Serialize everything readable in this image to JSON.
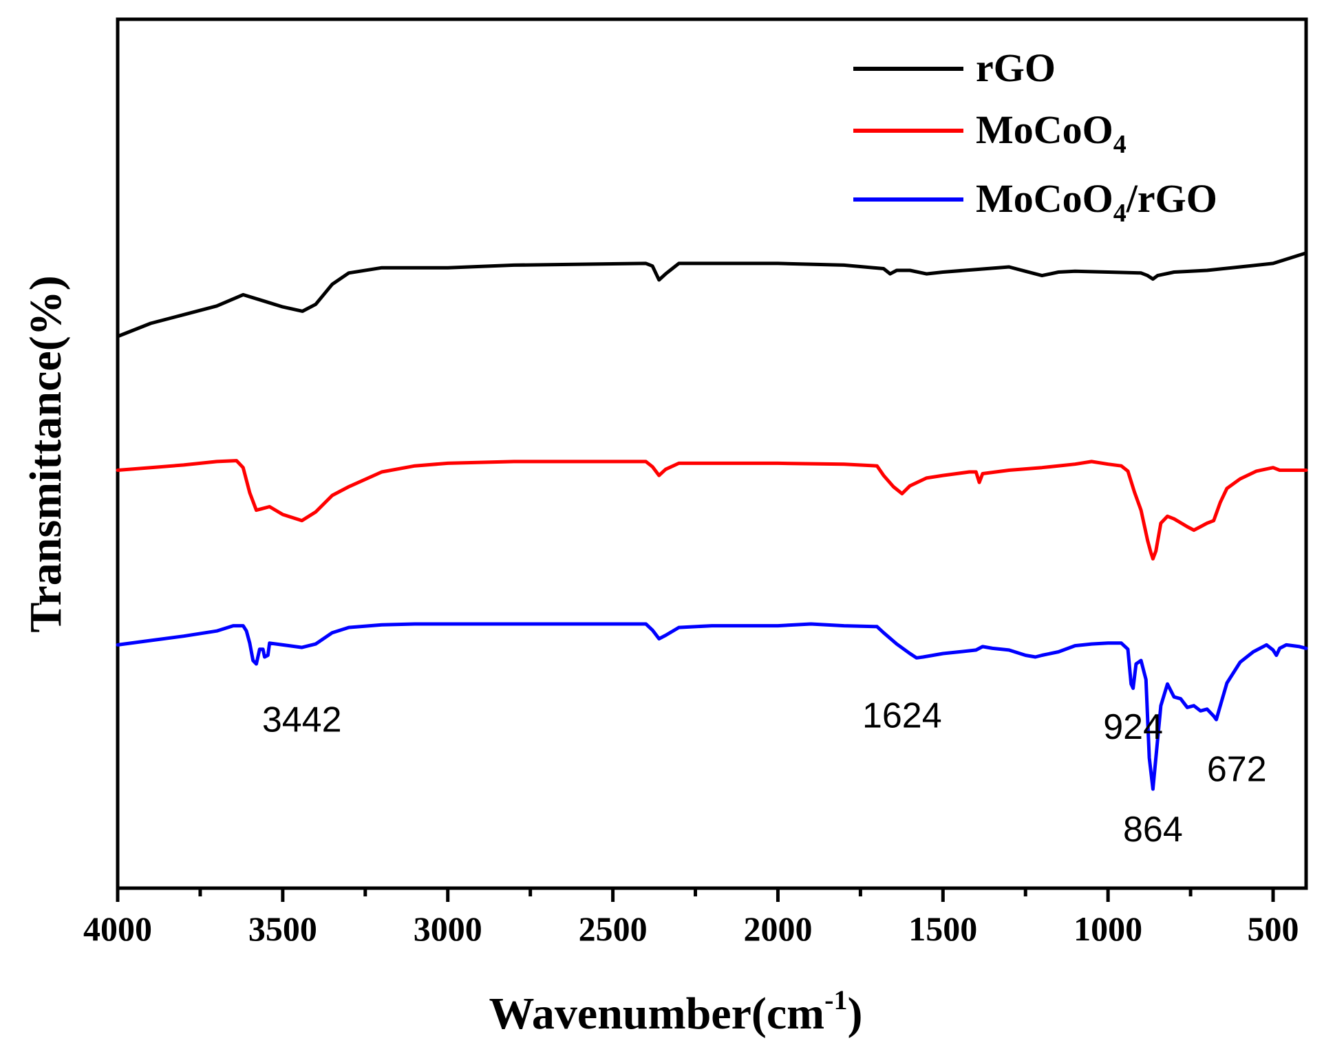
{
  "chart_data": {
    "type": "line",
    "title": "",
    "xlabel": "Wavenumber(cm",
    "xlabel_sup": "-1",
    "xlabel_end": ")",
    "ylabel": "Transmittance(%)",
    "xlim": [
      4000,
      400
    ],
    "x_reversed": true,
    "ylim": [
      0,
      100
    ],
    "y_ticks_labeled": false,
    "x_ticks": [
      4000,
      3500,
      3000,
      2500,
      2000,
      1500,
      1000,
      500
    ],
    "x_minor_ticks": [
      3750,
      3250,
      2750,
      2250,
      1750,
      1250,
      750
    ],
    "legend_position": "top-right",
    "series": [
      {
        "name": "rGO",
        "label_main": "rGO",
        "label_sub": "",
        "label_tail": "",
        "color": "#000000",
        "points": [
          [
            4000,
            63.5
          ],
          [
            3900,
            65
          ],
          [
            3800,
            66
          ],
          [
            3700,
            67
          ],
          [
            3620,
            68.3
          ],
          [
            3560,
            67.6
          ],
          [
            3500,
            66.9
          ],
          [
            3440,
            66.4
          ],
          [
            3400,
            67.2
          ],
          [
            3350,
            69.5
          ],
          [
            3300,
            70.8
          ],
          [
            3200,
            71.4
          ],
          [
            3000,
            71.4
          ],
          [
            2800,
            71.7
          ],
          [
            2400,
            71.9
          ],
          [
            2380,
            71.6
          ],
          [
            2360,
            70
          ],
          [
            2340,
            70.7
          ],
          [
            2320,
            71.3
          ],
          [
            2300,
            71.9
          ],
          [
            2000,
            71.9
          ],
          [
            1800,
            71.7
          ],
          [
            1680,
            71.3
          ],
          [
            1660,
            70.7
          ],
          [
            1640,
            71.1
          ],
          [
            1600,
            71.1
          ],
          [
            1550,
            70.7
          ],
          [
            1500,
            70.9
          ],
          [
            1400,
            71.2
          ],
          [
            1300,
            71.5
          ],
          [
            1250,
            71
          ],
          [
            1200,
            70.5
          ],
          [
            1150,
            70.9
          ],
          [
            1100,
            71
          ],
          [
            1000,
            70.9
          ],
          [
            900,
            70.8
          ],
          [
            880,
            70.5
          ],
          [
            864,
            70.1
          ],
          [
            850,
            70.5
          ],
          [
            800,
            70.9
          ],
          [
            700,
            71.1
          ],
          [
            600,
            71.5
          ],
          [
            500,
            71.9
          ],
          [
            400,
            73.1
          ]
        ]
      },
      {
        "name": "MoCoO4",
        "label_main": "MoCoO",
        "label_sub": "4",
        "label_tail": "",
        "color": "#ff0000",
        "points": [
          [
            4000,
            48.1
          ],
          [
            3900,
            48.4
          ],
          [
            3800,
            48.7
          ],
          [
            3700,
            49.1
          ],
          [
            3640,
            49.2
          ],
          [
            3620,
            48.4
          ],
          [
            3600,
            45.5
          ],
          [
            3580,
            43.5
          ],
          [
            3560,
            43.7
          ],
          [
            3540,
            43.9
          ],
          [
            3500,
            43
          ],
          [
            3442,
            42.3
          ],
          [
            3400,
            43.3
          ],
          [
            3350,
            45.2
          ],
          [
            3300,
            46.2
          ],
          [
            3200,
            47.9
          ],
          [
            3100,
            48.6
          ],
          [
            3000,
            48.9
          ],
          [
            2800,
            49.1
          ],
          [
            2400,
            49.1
          ],
          [
            2380,
            48.5
          ],
          [
            2360,
            47.5
          ],
          [
            2340,
            48.2
          ],
          [
            2300,
            48.9
          ],
          [
            2000,
            48.9
          ],
          [
            1800,
            48.8
          ],
          [
            1700,
            48.6
          ],
          [
            1680,
            47.5
          ],
          [
            1650,
            46.2
          ],
          [
            1624,
            45.4
          ],
          [
            1600,
            46.3
          ],
          [
            1550,
            47.2
          ],
          [
            1500,
            47.5
          ],
          [
            1420,
            47.9
          ],
          [
            1400,
            47.9
          ],
          [
            1390,
            46.7
          ],
          [
            1380,
            47.7
          ],
          [
            1300,
            48.1
          ],
          [
            1200,
            48.4
          ],
          [
            1100,
            48.8
          ],
          [
            1050,
            49.1
          ],
          [
            1000,
            48.8
          ],
          [
            960,
            48.6
          ],
          [
            940,
            48
          ],
          [
            920,
            45.6
          ],
          [
            900,
            43.5
          ],
          [
            880,
            40
          ],
          [
            870,
            38.6
          ],
          [
            864,
            37.9
          ],
          [
            855,
            38.8
          ],
          [
            840,
            42
          ],
          [
            820,
            42.8
          ],
          [
            800,
            42.5
          ],
          [
            760,
            41.6
          ],
          [
            740,
            41.2
          ],
          [
            720,
            41.6
          ],
          [
            700,
            42
          ],
          [
            680,
            42.3
          ],
          [
            660,
            44.4
          ],
          [
            640,
            46
          ],
          [
            600,
            47.1
          ],
          [
            550,
            48
          ],
          [
            500,
            48.4
          ],
          [
            480,
            48.1
          ],
          [
            440,
            48.1
          ],
          [
            400,
            48.1
          ]
        ]
      },
      {
        "name": "MoCoO4/rGO",
        "label_main": "MoCoO",
        "label_sub": "4",
        "label_tail": "/rGO",
        "color": "#0000ff",
        "points": [
          [
            4000,
            28
          ],
          [
            3900,
            28.5
          ],
          [
            3800,
            29
          ],
          [
            3700,
            29.6
          ],
          [
            3650,
            30.2
          ],
          [
            3620,
            30.2
          ],
          [
            3610,
            29.6
          ],
          [
            3600,
            28.2
          ],
          [
            3590,
            26.2
          ],
          [
            3580,
            25.8
          ],
          [
            3570,
            27.5
          ],
          [
            3560,
            27.5
          ],
          [
            3555,
            26.6
          ],
          [
            3545,
            26.8
          ],
          [
            3540,
            28.2
          ],
          [
            3500,
            28
          ],
          [
            3442,
            27.7
          ],
          [
            3400,
            28.1
          ],
          [
            3350,
            29.4
          ],
          [
            3300,
            30
          ],
          [
            3200,
            30.3
          ],
          [
            3100,
            30.4
          ],
          [
            2800,
            30.4
          ],
          [
            2400,
            30.4
          ],
          [
            2380,
            29.7
          ],
          [
            2360,
            28.7
          ],
          [
            2340,
            29.1
          ],
          [
            2300,
            30
          ],
          [
            2200,
            30.2
          ],
          [
            2000,
            30.2
          ],
          [
            1900,
            30.4
          ],
          [
            1800,
            30.2
          ],
          [
            1700,
            30.1
          ],
          [
            1680,
            29.4
          ],
          [
            1640,
            28.1
          ],
          [
            1600,
            27
          ],
          [
            1580,
            26.5
          ],
          [
            1560,
            26.6
          ],
          [
            1500,
            27
          ],
          [
            1450,
            27.2
          ],
          [
            1400,
            27.4
          ],
          [
            1380,
            27.8
          ],
          [
            1350,
            27.6
          ],
          [
            1300,
            27.4
          ],
          [
            1250,
            26.8
          ],
          [
            1220,
            26.6
          ],
          [
            1200,
            26.8
          ],
          [
            1150,
            27.2
          ],
          [
            1100,
            27.9
          ],
          [
            1050,
            28.1
          ],
          [
            1000,
            28.2
          ],
          [
            960,
            28.2
          ],
          [
            940,
            27.5
          ],
          [
            930,
            23.5
          ],
          [
            924,
            23
          ],
          [
            915,
            25.8
          ],
          [
            900,
            26.2
          ],
          [
            885,
            24
          ],
          [
            875,
            15
          ],
          [
            864,
            11.4
          ],
          [
            855,
            15
          ],
          [
            840,
            21
          ],
          [
            820,
            23.5
          ],
          [
            800,
            22
          ],
          [
            780,
            21.8
          ],
          [
            760,
            20.8
          ],
          [
            740,
            21
          ],
          [
            720,
            20.4
          ],
          [
            700,
            20.6
          ],
          [
            680,
            19.8
          ],
          [
            672,
            19.4
          ],
          [
            660,
            21
          ],
          [
            640,
            23.6
          ],
          [
            600,
            26
          ],
          [
            560,
            27.2
          ],
          [
            520,
            28
          ],
          [
            500,
            27.4
          ],
          [
            490,
            26.8
          ],
          [
            480,
            27.6
          ],
          [
            460,
            28
          ],
          [
            420,
            27.8
          ],
          [
            400,
            27.6
          ]
        ]
      }
    ],
    "annotations": [
      {
        "text": "3442",
        "x": 3442,
        "y": 18
      },
      {
        "text": "1624",
        "x": 1624,
        "y": 18.5
      },
      {
        "text": "924",
        "x": 924,
        "y": 17.2
      },
      {
        "text": "672",
        "x": 610,
        "y": 12.3
      },
      {
        "text": "864",
        "x": 864,
        "y": 5.4
      }
    ]
  }
}
